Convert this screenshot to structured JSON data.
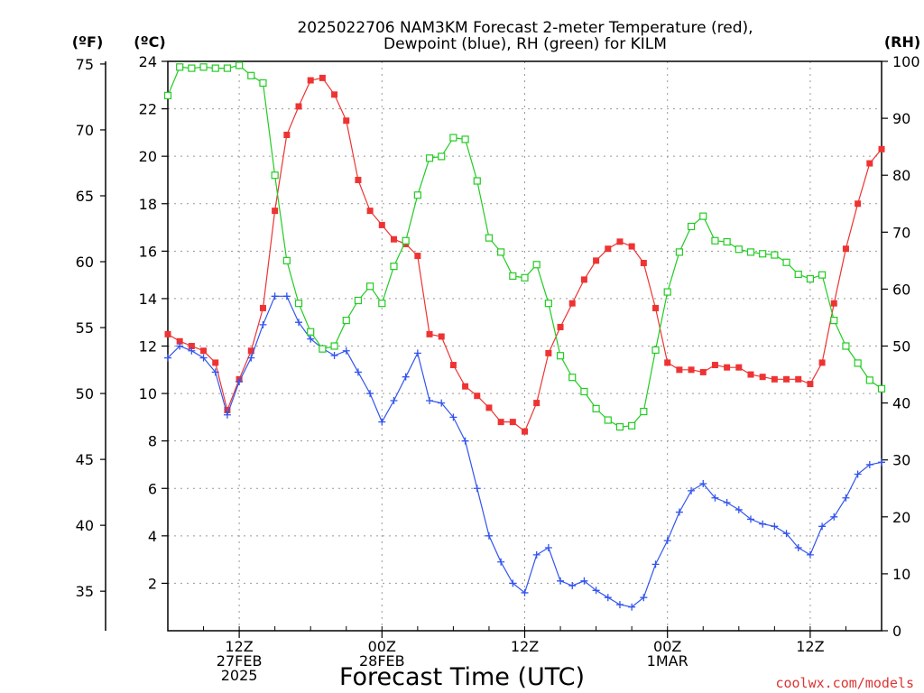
{
  "chart_data": {
    "type": "line",
    "title": "2025022706 NAM3KM Forecast 2-meter Temperature (red),",
    "title_line2": "Dewpoint (blue), RH (green) for KILM",
    "xlabel": "Forecast Time (UTC)",
    "credit": "coolwx.com/models",
    "axis_unit_f": "(ºF)",
    "axis_unit_c": "(ºC)",
    "axis_unit_rh": "(RH)",
    "x_range_hours": [
      0,
      60
    ],
    "ylim_c": [
      0,
      24
    ],
    "ylim_rh": [
      0,
      100
    ],
    "ylim_f": [
      32,
      75.2
    ],
    "grid": true,
    "c_ticks": [
      2,
      4,
      6,
      8,
      10,
      12,
      14,
      16,
      18,
      20,
      22,
      24
    ],
    "f_ticks": [
      35,
      40,
      45,
      50,
      55,
      60,
      65,
      70,
      75
    ],
    "rh_ticks": [
      0,
      10,
      20,
      30,
      40,
      50,
      60,
      70,
      80,
      90,
      100
    ],
    "x_ticks": [
      {
        "hour": 6,
        "lines": [
          "12Z",
          "27FEB",
          "2025"
        ]
      },
      {
        "hour": 18,
        "lines": [
          "00Z",
          "28FEB"
        ]
      },
      {
        "hour": 30,
        "lines": [
          "12Z"
        ]
      },
      {
        "hour": 42,
        "lines": [
          "00Z",
          "1MAR"
        ]
      },
      {
        "hour": 54,
        "lines": [
          "12Z"
        ]
      }
    ],
    "x_minor_ticks": [
      0,
      3,
      6,
      9,
      12,
      15,
      18,
      21,
      24,
      27,
      30,
      33,
      36,
      39,
      42,
      45,
      48,
      51,
      54,
      57,
      60
    ],
    "series": [
      {
        "name": "Temperature",
        "color": "#ee3333",
        "marker": "filled-square",
        "axis": "C",
        "x": [
          0,
          1,
          2,
          3,
          4,
          5,
          6,
          7,
          8,
          9,
          10,
          11,
          12,
          13,
          14,
          15,
          16,
          17,
          18,
          19,
          20,
          21,
          22,
          23,
          24,
          25,
          26,
          27,
          28,
          29,
          30,
          31,
          32,
          33,
          34,
          35,
          36,
          37,
          38,
          39,
          40,
          41,
          42,
          43,
          44,
          45,
          46,
          47,
          48,
          49,
          50,
          51,
          52,
          53,
          54,
          55,
          56,
          57,
          58,
          59,
          60
        ],
        "values": [
          12.5,
          12.2,
          12.0,
          11.8,
          11.3,
          9.3,
          10.6,
          11.8,
          13.6,
          17.7,
          20.9,
          22.1,
          23.2,
          23.3,
          22.6,
          21.5,
          19.0,
          17.7,
          17.1,
          16.5,
          16.3,
          15.8,
          12.5,
          12.4,
          11.2,
          10.3,
          9.9,
          9.4,
          8.8,
          8.8,
          8.4,
          9.6,
          11.7,
          12.8,
          13.8,
          14.8,
          15.6,
          16.1,
          16.4,
          16.2,
          15.5,
          13.6,
          11.3,
          11.0,
          11.0,
          10.9,
          11.2,
          11.1,
          11.1,
          10.8,
          10.7,
          10.6,
          10.6,
          10.6,
          10.4,
          11.3,
          13.8,
          16.1,
          18.0,
          19.7,
          20.3
        ]
      },
      {
        "name": "Dewpoint",
        "color": "#3355ee",
        "marker": "plus",
        "axis": "C",
        "x": [
          0,
          1,
          2,
          3,
          4,
          5,
          6,
          7,
          8,
          9,
          10,
          11,
          12,
          13,
          14,
          15,
          16,
          17,
          18,
          19,
          20,
          21,
          22,
          23,
          24,
          25,
          26,
          27,
          28,
          29,
          30,
          31,
          32,
          33,
          34,
          35,
          36,
          37,
          38,
          39,
          40,
          41,
          42,
          43,
          44,
          45,
          46,
          47,
          48,
          49,
          50,
          51,
          52,
          53,
          54,
          55,
          56,
          57,
          58,
          59,
          60
        ],
        "values": [
          11.5,
          12.0,
          11.8,
          11.5,
          10.9,
          9.1,
          10.5,
          11.5,
          12.9,
          14.1,
          14.1,
          13.0,
          12.3,
          11.9,
          11.6,
          11.8,
          10.9,
          10.0,
          8.8,
          9.7,
          10.7,
          11.7,
          9.7,
          9.6,
          9.0,
          8.0,
          6.0,
          4.0,
          2.9,
          2.0,
          1.6,
          3.2,
          3.5,
          2.1,
          1.9,
          2.1,
          1.7,
          1.4,
          1.1,
          1.0,
          1.4,
          2.8,
          3.8,
          5.0,
          5.9,
          6.2,
          5.6,
          5.4,
          5.1,
          4.7,
          4.5,
          4.4,
          4.1,
          3.5,
          3.2,
          4.4,
          4.8,
          5.6,
          6.6,
          7.0,
          7.1
        ]
      },
      {
        "name": "RH",
        "color": "#22cc22",
        "marker": "open-square",
        "axis": "RH",
        "x": [
          0,
          1,
          2,
          3,
          4,
          5,
          6,
          7,
          8,
          9,
          10,
          11,
          12,
          13,
          14,
          15,
          16,
          17,
          18,
          19,
          20,
          21,
          22,
          23,
          24,
          25,
          26,
          27,
          28,
          29,
          30,
          31,
          32,
          33,
          34,
          35,
          36,
          37,
          38,
          39,
          40,
          41,
          42,
          43,
          44,
          45,
          46,
          47,
          48,
          49,
          50,
          51,
          52,
          53,
          54,
          55,
          56,
          57,
          58,
          59,
          60
        ],
        "values": [
          94,
          99,
          98.8,
          99,
          98.8,
          98.8,
          99.3,
          97.5,
          96.2,
          80,
          65,
          57.5,
          52.5,
          49.5,
          50,
          54.5,
          58,
          60.5,
          57.5,
          64,
          68.5,
          76.5,
          83,
          83.3,
          86.6,
          86.3,
          79,
          69,
          66.5,
          62.3,
          62,
          64.3,
          57.5,
          48.3,
          44.5,
          42,
          39,
          37,
          35.8,
          36,
          38.5,
          49.3,
          59.5,
          66.5,
          71,
          72.8,
          68.5,
          68.3,
          67,
          66.5,
          66.2,
          66,
          64.7,
          62.6,
          61.8,
          62.5,
          54.5,
          50,
          47,
          44,
          42.5
        ]
      }
    ]
  }
}
